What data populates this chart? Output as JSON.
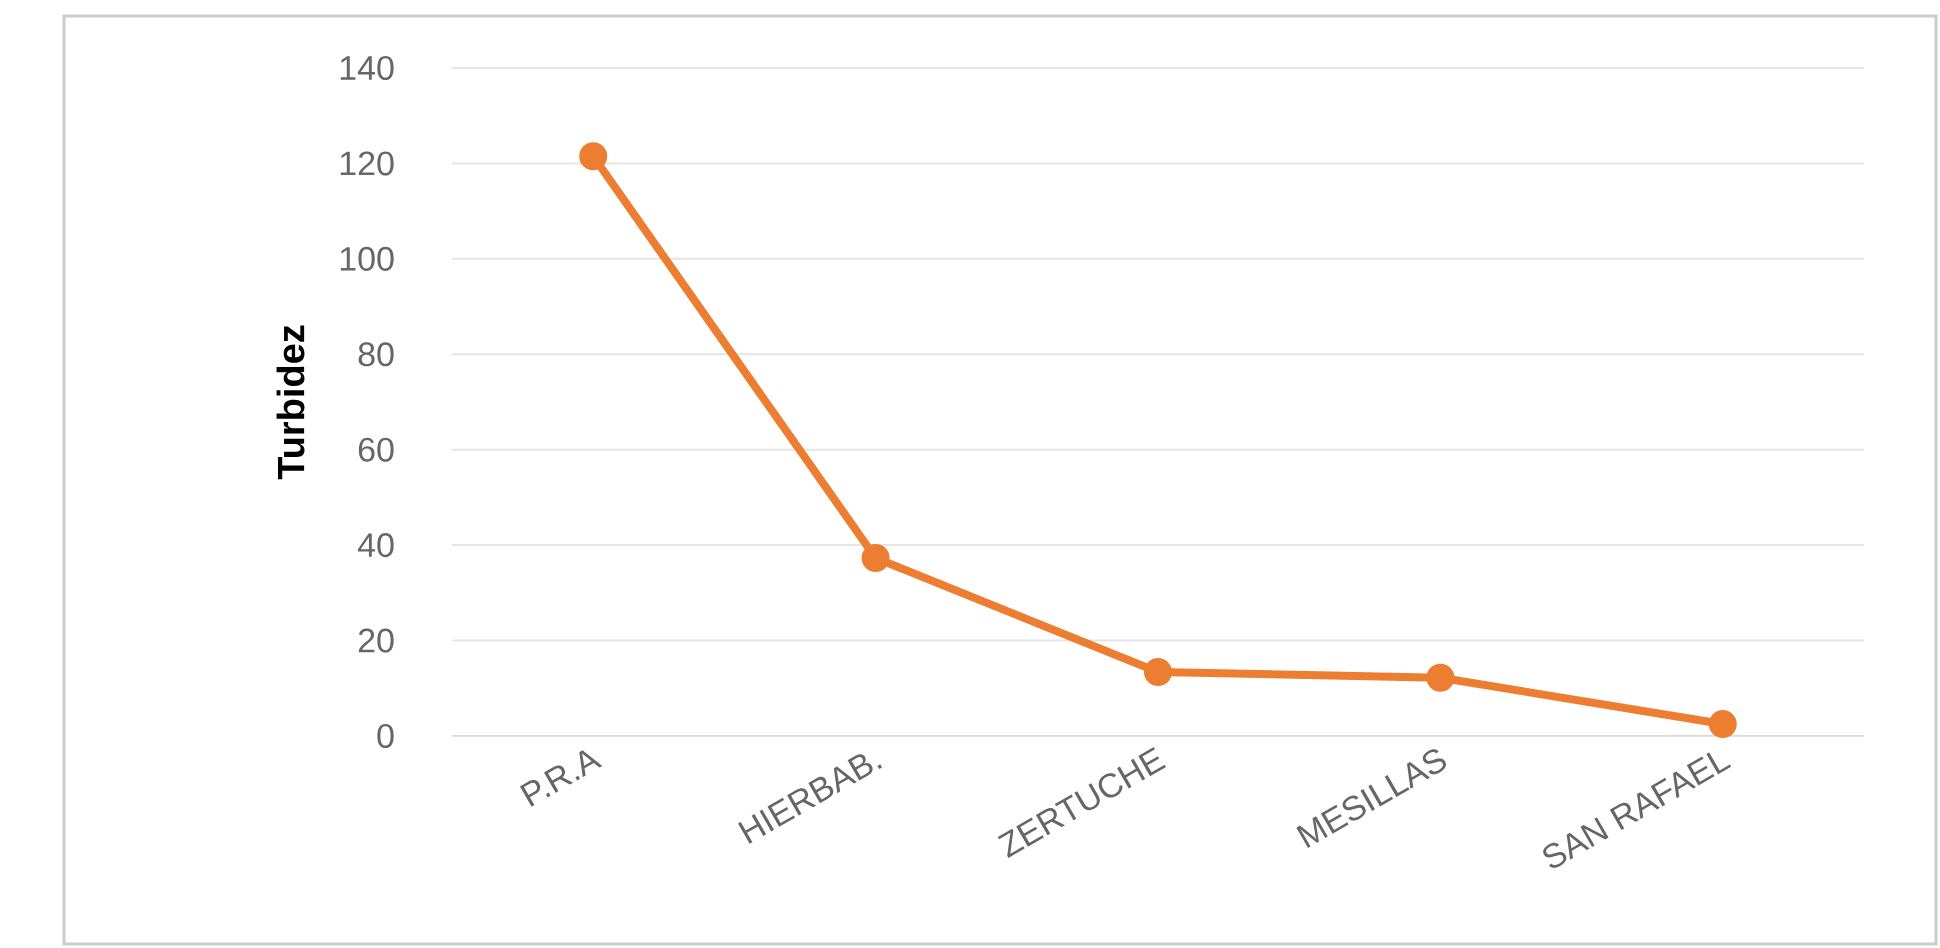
{
  "chart_data": {
    "type": "line",
    "ylabel": "Turbidez",
    "categories": [
      "P.R.A",
      "HIERBAB.",
      "ZERTUCHE",
      "MESILLAS",
      "SAN RAFAEL"
    ],
    "series": [
      {
        "color": "#ed7d31",
        "values": [
          121.5,
          37.3,
          13.4,
          12.2,
          2.5
        ]
      }
    ],
    "ylim": [
      0,
      140
    ],
    "yticks": [
      0,
      20,
      40,
      60,
      80,
      100,
      120,
      140
    ],
    "grid": "y",
    "marker": "circle",
    "line_style": "solid"
  }
}
